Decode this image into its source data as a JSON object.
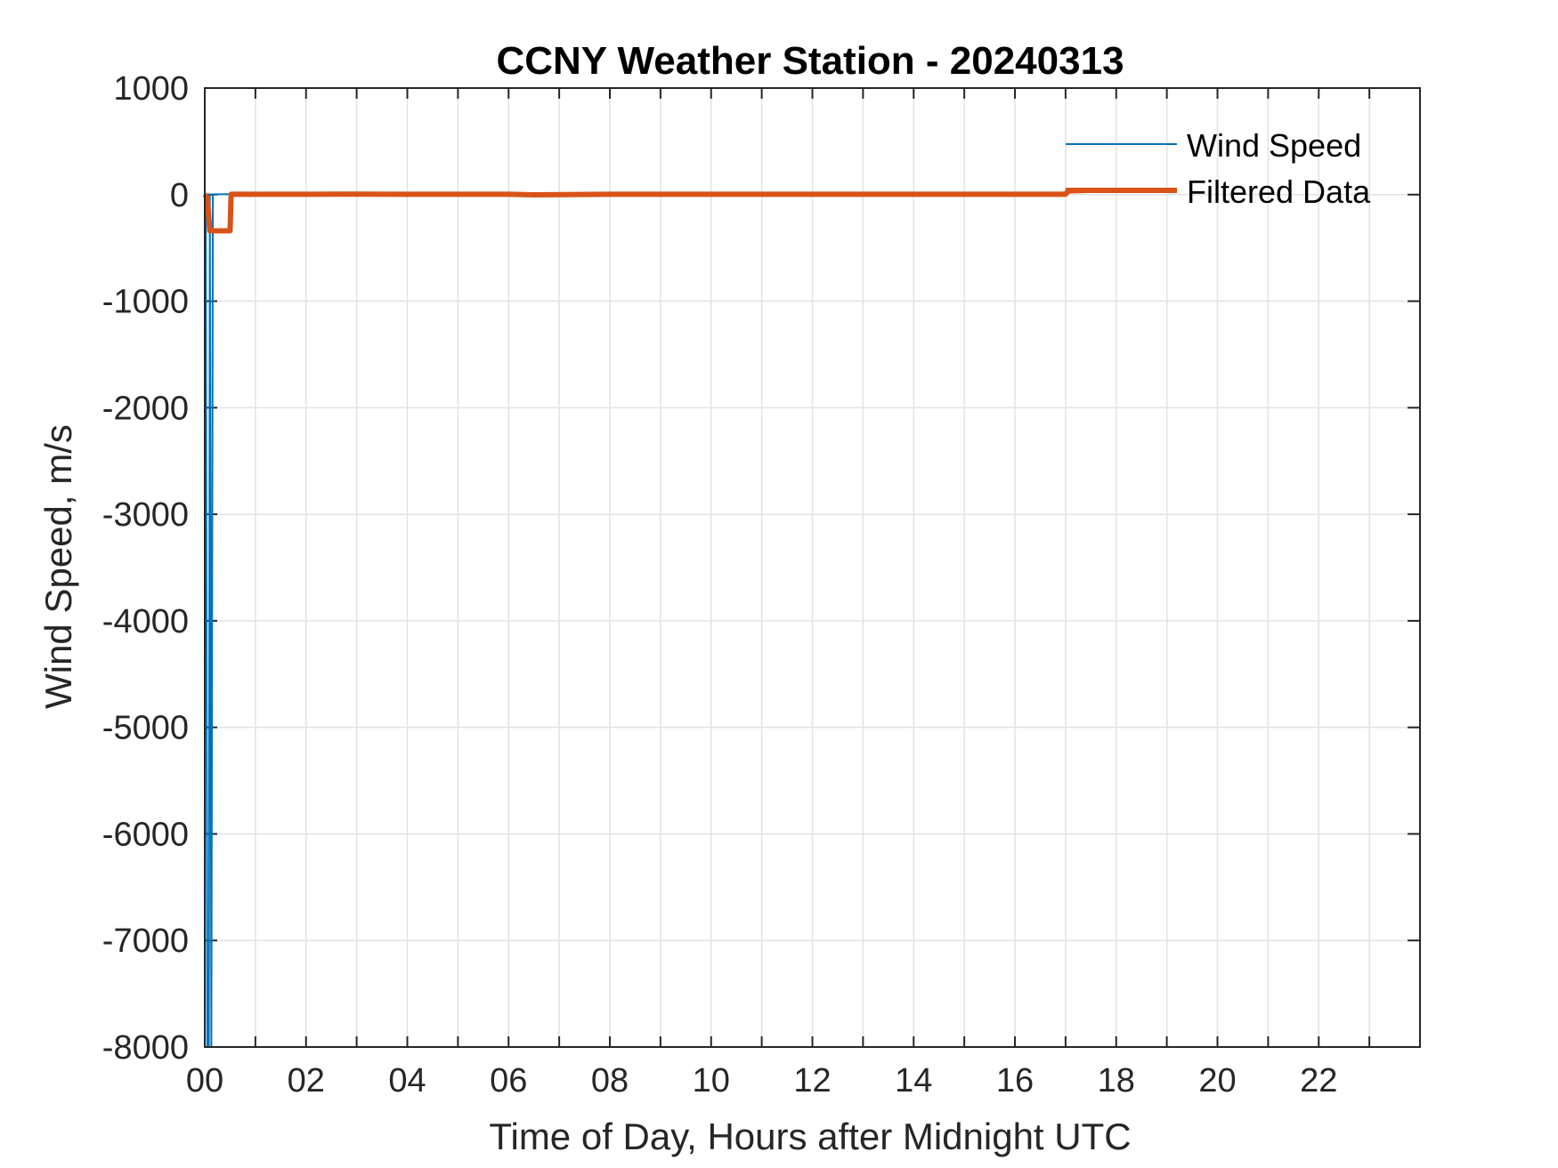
{
  "chart_data": {
    "type": "line",
    "title": "CCNY Weather Station - 20240313",
    "xlabel": "Time of Day, Hours after Midnight UTC",
    "ylabel": "Wind Speed, m/s",
    "xlim": [
      0,
      24
    ],
    "ylim": [
      -8000,
      1000
    ],
    "grid": true,
    "legend_position": "top-right",
    "x_ticks": [
      0,
      2,
      4,
      6,
      8,
      10,
      12,
      14,
      16,
      18,
      20,
      22
    ],
    "x_tick_labels": [
      "00",
      "02",
      "04",
      "06",
      "08",
      "10",
      "12",
      "14",
      "16",
      "18",
      "20",
      "22"
    ],
    "y_ticks": [
      1000,
      0,
      -1000,
      -2000,
      -3000,
      -4000,
      -5000,
      -6000,
      -7000,
      -8000
    ],
    "y_tick_labels": [
      "1000",
      "0",
      "-1000",
      "-2000",
      "-3000",
      "-4000",
      "-5000",
      "-6000",
      "-7000",
      "-8000"
    ],
    "series": [
      {
        "name": "Wind Speed",
        "color": "#0072BD",
        "x": [
          0,
          0.02,
          0.05,
          0.08,
          0.1,
          0.13,
          0.16,
          0.5,
          1,
          4,
          8,
          12,
          16,
          17,
          17.05,
          17.4
        ],
        "y": [
          3,
          2,
          -8000,
          -8000,
          0,
          -8000,
          3,
          3,
          3,
          3,
          3,
          3,
          3,
          3,
          50,
          50
        ]
      },
      {
        "name": "Filtered Data",
        "color": "#D95319",
        "x": [
          0,
          0.05,
          0.1,
          0.5,
          0.52,
          1,
          2,
          3,
          4,
          6,
          6.5,
          8,
          10,
          12,
          14,
          16,
          17,
          17.05,
          17.4,
          19.2
        ],
        "y": [
          3,
          -30,
          -340,
          -340,
          3,
          3,
          3,
          5,
          3,
          3,
          -2,
          3,
          3,
          3,
          3,
          3,
          3,
          35,
          40,
          40
        ]
      }
    ]
  }
}
